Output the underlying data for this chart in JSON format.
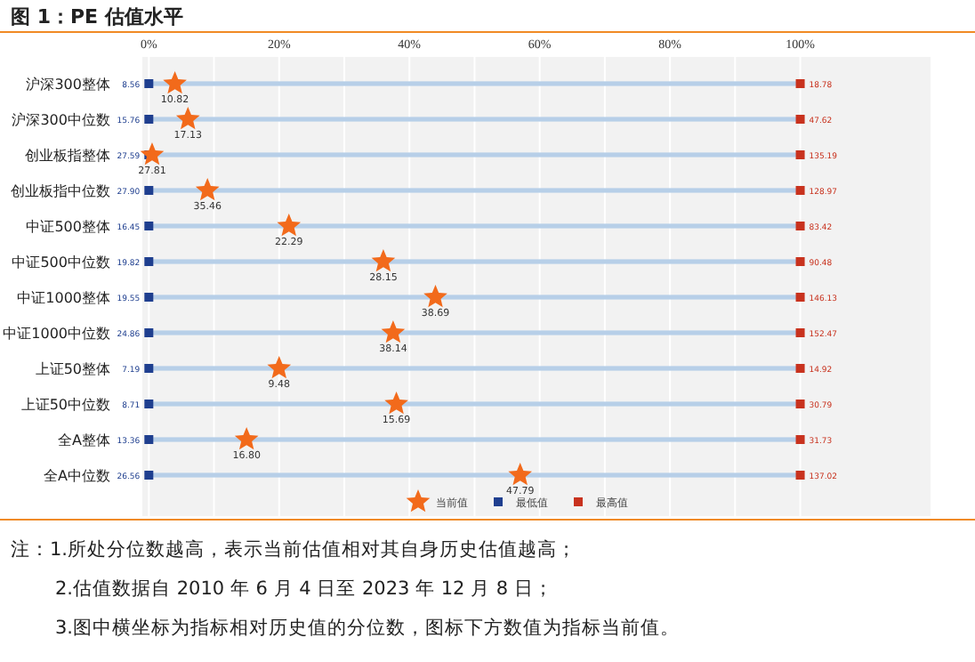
{
  "chart_data": {
    "type": "scatter",
    "orientation": "horizontal",
    "title": "图 1：PE 估值水平",
    "categories": [
      "沪深300整体",
      "沪深300中位数",
      "创业板指整体",
      "创业板指中位数",
      "中证500整体",
      "中证500中位数",
      "中证1000整体",
      "中证1000中位数",
      "上证50整体",
      "上证50中位数",
      "全A整体",
      "全A中位数"
    ],
    "xlim": [
      -1,
      120
    ],
    "xticks": [
      {
        "value": 0,
        "label": "0%"
      },
      {
        "value": 10,
        "label": null
      },
      {
        "value": 20,
        "label": "20%"
      },
      {
        "value": 30,
        "label": null
      },
      {
        "value": 40,
        "label": "40%"
      },
      {
        "value": 50,
        "label": null
      },
      {
        "value": 60,
        "label": "60%"
      },
      {
        "value": 70,
        "label": null
      },
      {
        "value": 80,
        "label": "80%"
      },
      {
        "value": 90,
        "label": null
      },
      {
        "value": 100,
        "label": "100%"
      }
    ],
    "grid": "x",
    "legend": "bottom",
    "series": [
      {
        "type": "bar",
        "color": "#b7cfe8",
        "values": [
          100,
          100,
          100,
          100,
          100,
          100,
          100,
          100,
          100,
          100,
          100,
          100
        ]
      },
      {
        "type": "scatter",
        "name": "最低值",
        "color": "#1f3f8f",
        "marker": "square",
        "values": [
          0,
          0,
          0,
          0,
          0,
          0,
          0,
          0,
          0,
          0,
          0,
          0
        ]
      },
      {
        "type": "scatter",
        "name": "最高值",
        "color": "#c8321e",
        "marker": "square",
        "values": [
          100,
          100,
          100,
          100,
          100,
          100,
          100,
          100,
          100,
          100,
          100,
          100
        ]
      },
      {
        "type": "scatter",
        "name": "当前值",
        "color": "#f26a1b",
        "marker": "star",
        "values": [
          4,
          6,
          0.5,
          9,
          21.5,
          36,
          44,
          37.5,
          20,
          38,
          15,
          57
        ]
      }
    ],
    "annotations": [
      {
        "text": "8.56",
        "x": 0,
        "y": "沪深300整体"
      },
      {
        "text": "15.76",
        "x": 0,
        "y": "沪深300中位数"
      },
      {
        "text": "27.59",
        "x": 0,
        "y": "创业板指整体"
      },
      {
        "text": "27.90",
        "x": 0,
        "y": "创业板指中位数"
      },
      {
        "text": "16.45",
        "x": 0,
        "y": "中证500整体"
      },
      {
        "text": "19.82",
        "x": 0,
        "y": "中证500中位数"
      },
      {
        "text": "19.55",
        "x": 0,
        "y": "中证1000整体"
      },
      {
        "text": "24.86",
        "x": 0,
        "y": "中证1000中位数"
      },
      {
        "text": "7.19",
        "x": 0,
        "y": "上证50整体"
      },
      {
        "text": "8.71",
        "x": 0,
        "y": "上证50中位数"
      },
      {
        "text": "13.36",
        "x": 0,
        "y": "全A整体"
      },
      {
        "text": "26.56",
        "x": 0,
        "y": "全A中位数"
      },
      {
        "text": "18.78",
        "x": 100,
        "y": "沪深300整体"
      },
      {
        "text": "47.62",
        "x": 100,
        "y": "沪深300中位数"
      },
      {
        "text": "135.19",
        "x": 100,
        "y": "创业板指整体"
      },
      {
        "text": "128.97",
        "x": 100,
        "y": "创业板指中位数"
      },
      {
        "text": "83.42",
        "x": 100,
        "y": "中证500整体"
      },
      {
        "text": "90.48",
        "x": 100,
        "y": "中证500中位数"
      },
      {
        "text": "146.13",
        "x": 100,
        "y": "中证1000整体"
      },
      {
        "text": "152.47",
        "x": 100,
        "y": "中证1000中位数"
      },
      {
        "text": "14.92",
        "x": 100,
        "y": "上证50整体"
      },
      {
        "text": "30.79",
        "x": 100,
        "y": "上证50中位数"
      },
      {
        "text": "31.73",
        "x": 100,
        "y": "全A整体"
      },
      {
        "text": "137.02",
        "x": 100,
        "y": "全A中位数"
      },
      {
        "text": "10.82",
        "x": 4,
        "y": "沪深300整体"
      },
      {
        "text": "17.13",
        "x": 6,
        "y": "沪深300中位数"
      },
      {
        "text": "27.81",
        "x": 0.5,
        "y": "创业板指整体"
      },
      {
        "text": "35.46",
        "x": 9,
        "y": "创业板指中位数"
      },
      {
        "text": "22.29",
        "x": 21.5,
        "y": "中证500整体"
      },
      {
        "text": "28.15",
        "x": 36,
        "y": "中证500中位数"
      },
      {
        "text": "38.69",
        "x": 44,
        "y": "中证1000整体"
      },
      {
        "text": "38.14",
        "x": 37.5,
        "y": "中证1000中位数"
      },
      {
        "text": "9.48",
        "x": 20,
        "y": "上证50整体"
      },
      {
        "text": "15.69",
        "x": 38,
        "y": "上证50中位数"
      },
      {
        "text": "16.80",
        "x": 15,
        "y": "全A整体"
      },
      {
        "text": "47.79",
        "x": 57,
        "y": "全A中位数"
      },
      "注：1.所处分位数越高，表示当前估值相对其自身历史估值越高；",
      "2.估值数据自 2010 年 6 月 4 日至 2023 年 12 月 8 日；",
      "3.图中横坐标为指标相对历史值的分位数，图标下方数值为指标当前值。"
    ]
  }
}
